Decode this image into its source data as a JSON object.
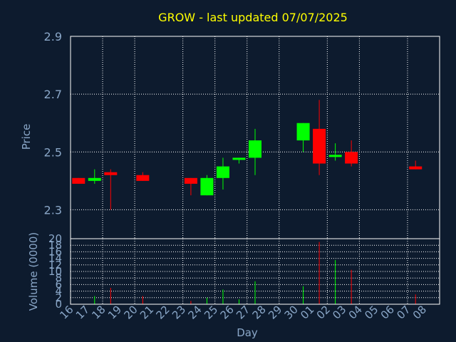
{
  "chart_data": {
    "type": "candlestick",
    "title": "GROW - last updated 07/07/2025",
    "xlabel": "Day",
    "price_panel": {
      "ylabel": "Price",
      "ylim": [
        2.2,
        2.9
      ],
      "yticks": [
        "2.3",
        "2.5",
        "2.7",
        "2.9"
      ]
    },
    "volume_panel": {
      "ylabel": "Volume (0000)",
      "ylim": [
        0,
        20
      ],
      "yticks": [
        "0",
        "2",
        "4",
        "6",
        "8",
        "10",
        "12",
        "14",
        "16",
        "18",
        "20"
      ]
    },
    "x_tick_labels": [
      "16",
      "17",
      "18",
      "19",
      "20",
      "21",
      "22",
      "23",
      "24",
      "25",
      "26",
      "27",
      "28",
      "29",
      "30",
      "01",
      "02",
      "03",
      "04",
      "05",
      "06",
      "07",
      "08"
    ],
    "candles": [
      {
        "day": "16",
        "open": 2.41,
        "high": 2.41,
        "low": 2.39,
        "close": 2.39,
        "volume": 0
      },
      {
        "day": "17",
        "open": 2.4,
        "high": 2.44,
        "low": 2.39,
        "close": 2.41,
        "volume": 2.5
      },
      {
        "day": "18",
        "open": 2.43,
        "high": 2.44,
        "low": 2.3,
        "close": 2.42,
        "volume": 5
      },
      {
        "day": "20",
        "open": 2.42,
        "high": 2.43,
        "low": 2.4,
        "close": 2.4,
        "volume": 2.5
      },
      {
        "day": "23",
        "open": 2.41,
        "high": 2.41,
        "low": 2.35,
        "close": 2.39,
        "volume": 1
      },
      {
        "day": "24",
        "open": 2.35,
        "high": 2.42,
        "low": 2.35,
        "close": 2.41,
        "volume": 2
      },
      {
        "day": "25",
        "open": 2.41,
        "high": 2.48,
        "low": 2.37,
        "close": 2.45,
        "volume": 4.5
      },
      {
        "day": "26",
        "open": 2.475,
        "high": 2.48,
        "low": 2.46,
        "close": 2.48,
        "volume": 1.5
      },
      {
        "day": "27",
        "open": 2.48,
        "high": 2.58,
        "low": 2.42,
        "close": 2.54,
        "volume": 7
      },
      {
        "day": "30",
        "open": 2.54,
        "high": 2.6,
        "low": 2.5,
        "close": 2.6,
        "volume": 5.5
      },
      {
        "day": "01",
        "open": 2.58,
        "high": 2.68,
        "low": 2.42,
        "close": 2.46,
        "volume": 19
      },
      {
        "day": "02",
        "open": 2.485,
        "high": 2.53,
        "low": 2.47,
        "close": 2.49,
        "volume": 13.5
      },
      {
        "day": "03",
        "open": 2.5,
        "high": 2.54,
        "low": 2.45,
        "close": 2.46,
        "volume": 10.5
      },
      {
        "day": "07",
        "open": 2.45,
        "high": 2.47,
        "low": 2.44,
        "close": 2.44,
        "volume": 3
      }
    ],
    "up_color": "#00ff00",
    "down_color": "#ff0000",
    "title_color": "#ffff00",
    "text_color": "#8aa7c8",
    "background": "#0d1b2e",
    "grid": true
  }
}
